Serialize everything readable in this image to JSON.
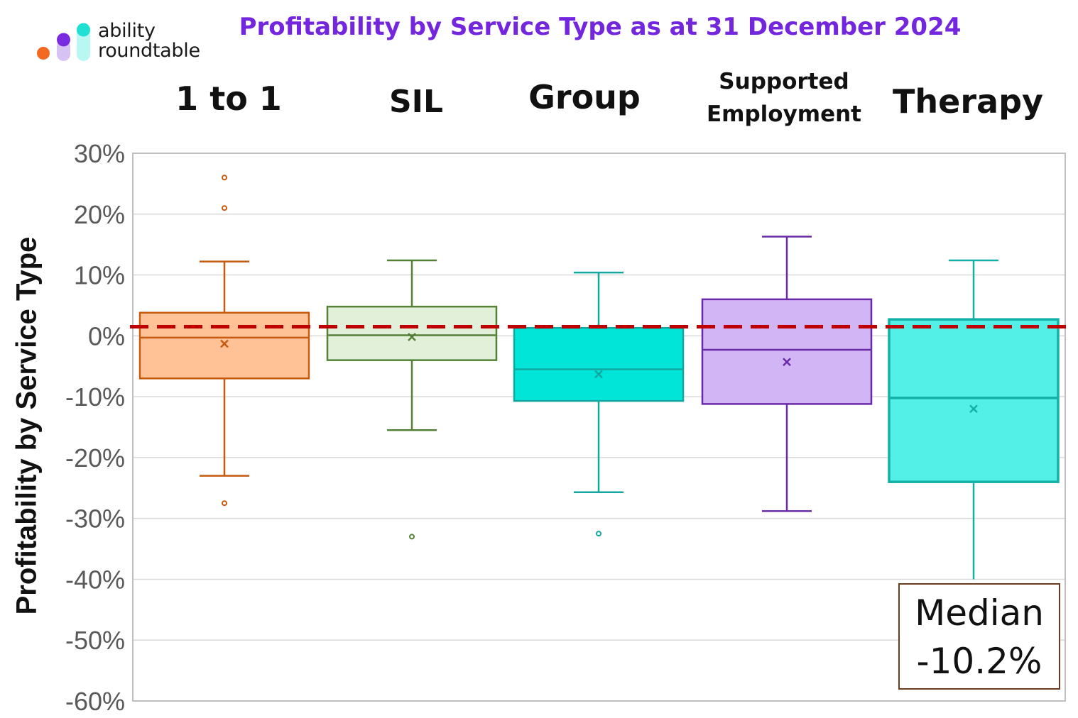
{
  "logo": {
    "line1": "ability",
    "line2": "roundtable"
  },
  "chart_data": {
    "type": "box",
    "title": "Profitability by Service Type as at 31 December 2024",
    "ylabel": "Profitability by Service Type",
    "ylim": [
      -60,
      30
    ],
    "yticks": [
      "30%",
      "20%",
      "10%",
      "0%",
      "-10%",
      "-20%",
      "-30%",
      "-40%",
      "-50%",
      "-60%"
    ],
    "grid": true,
    "reference_line": {
      "value": 1.5,
      "color": "#c00000",
      "style": "dashed"
    },
    "series": [
      {
        "category": "1 to 1",
        "min": -23,
        "q1": -7,
        "median": -0.3,
        "q3": 3.8,
        "max": 12.2,
        "mean": -1.3,
        "outliers": [
          26,
          21,
          -27.5
        ],
        "fill": "#ffc296",
        "stroke": "#c55a11"
      },
      {
        "category": "SIL",
        "min": -15.5,
        "q1": -4,
        "median": 0.1,
        "q3": 4.8,
        "max": 12.4,
        "mean": -0.2,
        "outliers": [
          -33
        ],
        "fill": "#e2efd9",
        "stroke": "#538135"
      },
      {
        "category": "Group",
        "min": -25.7,
        "q1": -10.7,
        "median": -5.5,
        "q3": 1.3,
        "max": 10.4,
        "mean": -6.3,
        "outliers": [
          -32.5
        ],
        "fill": "#00e5d8",
        "stroke": "#12a8a0"
      },
      {
        "category": "Supported Employment",
        "min": -28.8,
        "q1": -11.2,
        "median": -2.3,
        "q3": 6,
        "max": 16.3,
        "mean": -4.3,
        "outliers": [],
        "fill": "#d2b5f5",
        "stroke": "#6a2aa8"
      },
      {
        "category": "Therapy",
        "min": -40,
        "q1": -24,
        "median": -10.2,
        "q3": 2.7,
        "max": 12.4,
        "mean": -12,
        "outliers": [],
        "fill": "#52f0e6",
        "stroke": "#14b0a8"
      }
    ],
    "annotation": {
      "line1": "Median",
      "line2": "-10.2%"
    }
  }
}
